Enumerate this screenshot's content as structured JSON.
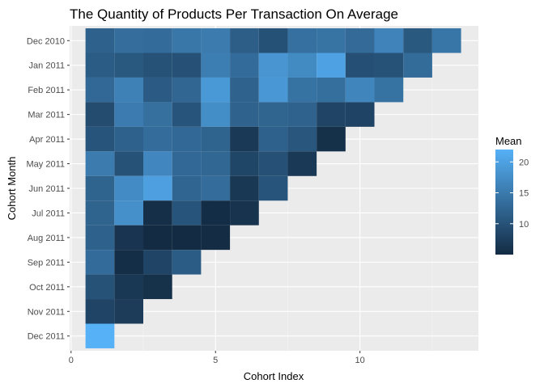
{
  "chart_data": {
    "type": "heatmap",
    "title": "The Quantity of Products Per Transaction On Average",
    "xlabel": "Cohort Index",
    "ylabel": "Cohort Month",
    "x_ticks": [
      0,
      5,
      10
    ],
    "xlim": [
      -0.05,
      14.1
    ],
    "rows": [
      "Dec 2010",
      "Jan 2011",
      "Feb 2011",
      "Mar 2011",
      "Apr 2011",
      "May 2011",
      "Jun 2011",
      "Jul 2011",
      "Aug 2011",
      "Sep 2011",
      "Oct 2011",
      "Nov 2011",
      "Dec 2011"
    ],
    "values": [
      [
        11.9,
        13.5,
        13.2,
        14.6,
        15.1,
        11.5,
        9.8,
        13.8,
        14.1,
        13.0,
        16.2,
        10.8,
        14.5
      ],
      [
        11.2,
        10.8,
        9.9,
        9.7,
        15.5,
        13.2,
        18.5,
        17.0,
        20.0,
        9.6,
        10.0,
        13.1
      ],
      [
        12.8,
        15.9,
        11.1,
        12.5,
        19.0,
        12.1,
        18.7,
        14.0,
        13.6,
        16.5,
        14.0
      ],
      [
        9.2,
        15.2,
        13.7,
        10.2,
        17.5,
        12.0,
        12.3,
        12.1,
        8.2,
        8.1
      ],
      [
        10.2,
        11.9,
        13.3,
        12.7,
        12.2,
        6.8,
        11.8,
        10.5,
        5.6
      ],
      [
        15.1,
        10.0,
        16.6,
        12.8,
        12.6,
        8.4,
        9.7,
        6.8
      ],
      [
        12.2,
        17.2,
        19.7,
        12.4,
        13.3,
        6.6,
        10.2
      ],
      [
        12.2,
        17.8,
        5.5,
        10.2,
        5.3,
        6.0
      ],
      [
        11.9,
        6.2,
        5.0,
        5.0,
        5.2
      ],
      [
        13.2,
        5.4,
        8.2,
        11.2
      ],
      [
        10.0,
        6.6,
        5.7
      ],
      [
        8.2,
        7.2
      ],
      [
        22.0
      ]
    ],
    "color_scale": {
      "low_color": "#132b43",
      "high_color": "#56b1f7",
      "min": 5.0,
      "max": 22.0
    },
    "legend": {
      "title": "Mean",
      "ticks": [
        10,
        15,
        20
      ],
      "placement": "right"
    },
    "grid": true,
    "panel_color": "#ebebeb"
  }
}
